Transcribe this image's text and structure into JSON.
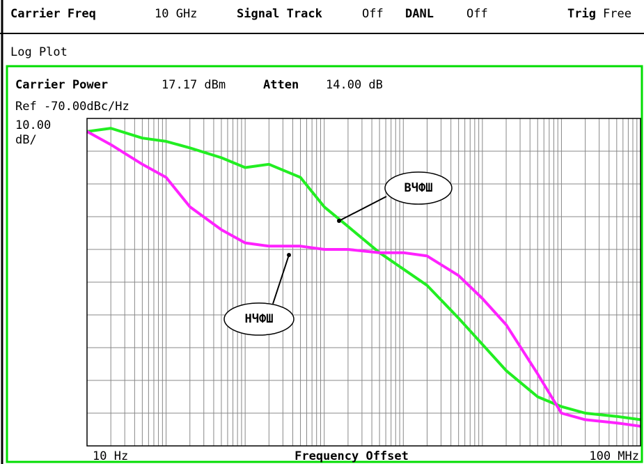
{
  "header": {
    "items": [
      {
        "label": "Carrier Freq",
        "value": "10 GHz"
      },
      {
        "label": "Signal Track",
        "value": "Off"
      },
      {
        "label": "DANL",
        "value": "Off"
      },
      {
        "label": "Trig",
        "value": "Free"
      }
    ],
    "mode": "Log Plot"
  },
  "chart_data": {
    "type": "line",
    "info": [
      {
        "label": "Carrier Power",
        "value": "17.17 dBm"
      },
      {
        "label": "Atten",
        "value": "14.00 dB"
      }
    ],
    "reference": "Ref -70.00dBc/Hz",
    "scale": [
      "10.00",
      "dB/"
    ],
    "xlabel": "Frequency Offset",
    "xlog": true,
    "xlim": [
      10,
      100000000.0
    ],
    "xticks": [
      {
        "value": 10,
        "label": "10 Hz"
      },
      {
        "value": 100000000.0,
        "label": "100 MHz"
      }
    ],
    "xgrid": [
      10,
      20,
      30,
      40,
      50,
      60,
      70,
      80,
      90,
      100,
      200,
      300,
      400,
      500,
      600,
      700,
      800,
      900,
      1000,
      2000,
      3000,
      4000,
      5000,
      6000,
      7000,
      8000,
      9000,
      10000.0,
      20000.0,
      30000.0,
      40000.0,
      50000.0,
      60000.0,
      70000.0,
      80000.0,
      90000.0,
      100000.0,
      200000.0,
      300000.0,
      400000.0,
      500000.0,
      600000.0,
      700000.0,
      800000.0,
      900000.0,
      1000000.0,
      2000000.0,
      3000000.0,
      4000000.0,
      5000000.0,
      6000000.0,
      7000000.0,
      8000000.0,
      9000000.0,
      10000000.0,
      20000000.0,
      30000000.0,
      40000000.0,
      50000000.0,
      60000000.0,
      70000000.0,
      80000000.0,
      90000000.0,
      100000000.0
    ],
    "ylim": [
      -170,
      -70
    ],
    "ygrid": [
      -170,
      -160,
      -150,
      -140,
      -130,
      -120,
      -110,
      -100,
      -90,
      -80,
      -70
    ],
    "grid": true,
    "x": [
      10,
      20,
      50,
      100,
      200,
      500,
      1000,
      2000,
      5000,
      10000.0,
      20000.0,
      50000.0,
      100000.0,
      200000.0,
      500000.0,
      1000000.0,
      2000000.0,
      5000000.0,
      10000000.0,
      20000000.0,
      50000000.0,
      100000000.0
    ],
    "series": [
      {
        "name": "ВЧФШ",
        "color": "#22ee22",
        "values": [
          -74,
          -73,
          -76,
          -77,
          -79,
          -82,
          -85,
          -84,
          -88,
          -97,
          -103,
          -111,
          -116,
          -121,
          -131,
          -139,
          -147,
          -155,
          -158,
          -160,
          -161,
          -162
        ]
      },
      {
        "name": "НЧФШ",
        "color": "#ff22ff",
        "values": [
          -74,
          -78,
          -84,
          -88,
          -97,
          -104,
          -108,
          -109,
          -109,
          -110,
          -110,
          -111,
          -111,
          -112,
          -118,
          -125,
          -133,
          -148,
          -160,
          -162,
          -163,
          -164
        ]
      }
    ]
  }
}
